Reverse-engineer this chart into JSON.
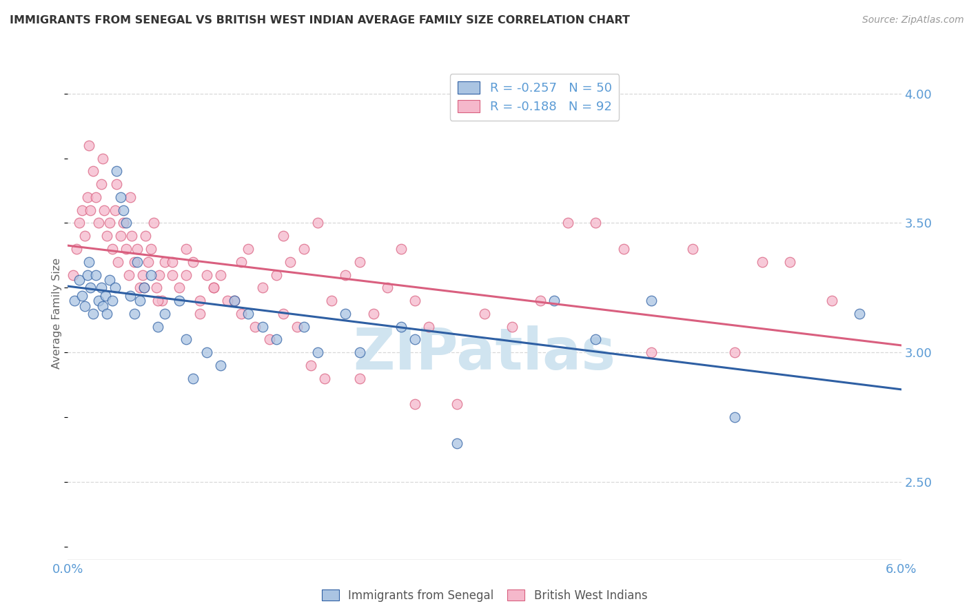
{
  "title": "IMMIGRANTS FROM SENEGAL VS BRITISH WEST INDIAN AVERAGE FAMILY SIZE CORRELATION CHART",
  "source": "Source: ZipAtlas.com",
  "ylabel": "Average Family Size",
  "xmin": 0.0,
  "xmax": 6.0,
  "ymin": 2.2,
  "ymax": 4.1,
  "yticks_right": [
    2.5,
    3.0,
    3.5,
    4.0
  ],
  "legend_r1": "-0.257",
  "legend_n1": "50",
  "legend_r2": "-0.188",
  "legend_n2": "92",
  "color_blue": "#aac4e2",
  "color_pink": "#f5b8cb",
  "line_blue": "#2e5fa3",
  "line_pink": "#d95f7f",
  "title_color": "#333333",
  "axis_color": "#5b9bd5",
  "watermark_color": "#d0e4f0",
  "background": "#ffffff",
  "grid_color": "#d8d8d8",
  "senegal_x": [
    0.05,
    0.08,
    0.1,
    0.12,
    0.14,
    0.15,
    0.16,
    0.18,
    0.2,
    0.22,
    0.24,
    0.25,
    0.27,
    0.28,
    0.3,
    0.32,
    0.34,
    0.35,
    0.38,
    0.4,
    0.42,
    0.45,
    0.48,
    0.5,
    0.52,
    0.55,
    0.6,
    0.65,
    0.7,
    0.8,
    0.85,
    0.9,
    1.0,
    1.1,
    1.2,
    1.3,
    1.4,
    1.5,
    1.7,
    1.8,
    2.0,
    2.1,
    2.4,
    2.5,
    2.8,
    3.5,
    3.8,
    4.2,
    4.8,
    5.7
  ],
  "senegal_y": [
    3.2,
    3.28,
    3.22,
    3.18,
    3.3,
    3.35,
    3.25,
    3.15,
    3.3,
    3.2,
    3.25,
    3.18,
    3.22,
    3.15,
    3.28,
    3.2,
    3.25,
    3.7,
    3.6,
    3.55,
    3.5,
    3.22,
    3.15,
    3.35,
    3.2,
    3.25,
    3.3,
    3.1,
    3.15,
    3.2,
    3.05,
    2.9,
    3.0,
    2.95,
    3.2,
    3.15,
    3.1,
    3.05,
    3.1,
    3.0,
    3.15,
    3.0,
    3.1,
    3.05,
    2.65,
    3.2,
    3.05,
    3.2,
    2.75,
    3.15
  ],
  "bwi_x": [
    0.04,
    0.06,
    0.08,
    0.1,
    0.12,
    0.14,
    0.16,
    0.18,
    0.2,
    0.22,
    0.24,
    0.26,
    0.28,
    0.3,
    0.32,
    0.34,
    0.36,
    0.38,
    0.4,
    0.42,
    0.44,
    0.46,
    0.48,
    0.5,
    0.52,
    0.54,
    0.56,
    0.58,
    0.6,
    0.62,
    0.64,
    0.66,
    0.68,
    0.7,
    0.75,
    0.8,
    0.85,
    0.9,
    0.95,
    1.0,
    1.05,
    1.1,
    1.2,
    1.25,
    1.3,
    1.4,
    1.5,
    1.55,
    1.6,
    1.7,
    1.8,
    1.9,
    2.0,
    2.1,
    2.2,
    2.3,
    2.4,
    2.5,
    2.6,
    2.8,
    3.0,
    3.2,
    3.4,
    3.6,
    3.8,
    4.0,
    4.2,
    4.5,
    4.8,
    5.0,
    5.2,
    5.5,
    0.15,
    0.25,
    0.35,
    0.45,
    0.55,
    0.65,
    0.75,
    0.85,
    0.95,
    1.05,
    1.15,
    1.25,
    1.35,
    1.45,
    1.55,
    1.65,
    1.75,
    1.85,
    2.1,
    2.5
  ],
  "bwi_y": [
    3.3,
    3.4,
    3.5,
    3.55,
    3.45,
    3.6,
    3.55,
    3.7,
    3.6,
    3.5,
    3.65,
    3.55,
    3.45,
    3.5,
    3.4,
    3.55,
    3.35,
    3.45,
    3.5,
    3.4,
    3.3,
    3.45,
    3.35,
    3.4,
    3.25,
    3.3,
    3.45,
    3.35,
    3.4,
    3.5,
    3.25,
    3.3,
    3.2,
    3.35,
    3.3,
    3.25,
    3.4,
    3.35,
    3.2,
    3.3,
    3.25,
    3.3,
    3.2,
    3.35,
    3.4,
    3.25,
    3.3,
    3.45,
    3.35,
    3.4,
    3.5,
    3.2,
    3.3,
    3.35,
    3.15,
    3.25,
    3.4,
    3.2,
    3.1,
    2.8,
    3.15,
    3.1,
    3.2,
    3.5,
    3.5,
    3.4,
    3.0,
    3.4,
    3.0,
    3.35,
    3.35,
    3.2,
    3.8,
    3.75,
    3.65,
    3.6,
    3.25,
    3.2,
    3.35,
    3.3,
    3.15,
    3.25,
    3.2,
    3.15,
    3.1,
    3.05,
    3.15,
    3.1,
    2.95,
    2.9,
    2.9,
    2.8
  ]
}
